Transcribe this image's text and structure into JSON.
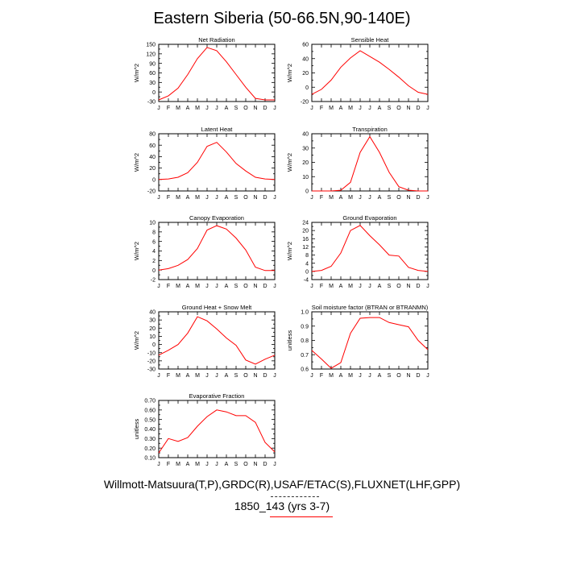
{
  "title": "Eastern Siberia (50-66.5N,90-140E)",
  "caption": "Willmott-Matsuura(T,P),GRDC(R),USAF/ETAC(S),FLUXNET(LHF,GPP)",
  "subcaption": "1850_143 (yrs 3-7)",
  "colors": {
    "model": "#ff0000",
    "legend_dash": "#333333"
  },
  "chart_data": [
    {
      "type": "line",
      "title": "Net Radiation",
      "ylabel": "W/m^2",
      "categories": [
        "J",
        "F",
        "M",
        "A",
        "M",
        "J",
        "J",
        "A",
        "S",
        "O",
        "N",
        "D",
        "J"
      ],
      "ylim": [
        -30,
        150
      ],
      "yticks": [
        -30,
        -15,
        0,
        15,
        30,
        45,
        60,
        75,
        90,
        105,
        120,
        135,
        150
      ],
      "ytick_labels": [
        "-30",
        "",
        "0",
        "",
        "30",
        "",
        "60",
        "",
        "90",
        "",
        "120",
        "",
        "150"
      ],
      "series": [
        {
          "values": [
            -25,
            -12,
            12,
            55,
            105,
            140,
            130,
            95,
            55,
            15,
            -20,
            -25,
            -25
          ]
        }
      ]
    },
    {
      "type": "line",
      "title": "Sensible Heat",
      "ylabel": "W/m^2",
      "categories": [
        "J",
        "F",
        "M",
        "A",
        "M",
        "J",
        "J",
        "A",
        "S",
        "O",
        "N",
        "D",
        "J"
      ],
      "ylim": [
        -20,
        60
      ],
      "yticks": [
        -20,
        -10,
        0,
        10,
        20,
        30,
        40,
        50,
        60
      ],
      "ytick_labels": [
        "-20",
        "",
        "0",
        "",
        "20",
        "",
        "40",
        "",
        "60"
      ],
      "series": [
        {
          "values": [
            -10,
            -3,
            10,
            28,
            41,
            51,
            43,
            35,
            25,
            14,
            2,
            -7,
            -10
          ]
        }
      ]
    },
    {
      "type": "line",
      "title": "Latent Heat",
      "ylabel": "W/m^2",
      "categories": [
        "J",
        "F",
        "M",
        "A",
        "M",
        "J",
        "J",
        "A",
        "S",
        "O",
        "N",
        "D",
        "J"
      ],
      "ylim": [
        -20,
        80
      ],
      "yticks": [
        -20,
        -10,
        0,
        10,
        20,
        30,
        40,
        50,
        60,
        70,
        80
      ],
      "ytick_labels": [
        "-20",
        "",
        "0",
        "",
        "20",
        "",
        "40",
        "",
        "60",
        "",
        "80"
      ],
      "series": [
        {
          "values": [
            0,
            1,
            4,
            12,
            30,
            58,
            65,
            48,
            28,
            15,
            4,
            1,
            0
          ]
        }
      ]
    },
    {
      "type": "line",
      "title": "Transpiration",
      "ylabel": "W/m^2",
      "categories": [
        "J",
        "F",
        "M",
        "A",
        "M",
        "J",
        "J",
        "A",
        "S",
        "O",
        "N",
        "D",
        "J"
      ],
      "ylim": [
        0,
        40
      ],
      "yticks": [
        0,
        5,
        10,
        15,
        20,
        25,
        30,
        35,
        40
      ],
      "ytick_labels": [
        "0",
        "",
        "10",
        "",
        "20",
        "",
        "30",
        "",
        "40"
      ],
      "series": [
        {
          "values": [
            0,
            0,
            0,
            0.5,
            6,
            27,
            38,
            27,
            13,
            3,
            0.5,
            0,
            0
          ]
        }
      ]
    },
    {
      "type": "line",
      "title": "Canopy Evaporation",
      "ylabel": "W/m^2",
      "categories": [
        "J",
        "F",
        "M",
        "A",
        "M",
        "J",
        "J",
        "A",
        "S",
        "O",
        "N",
        "D",
        "J"
      ],
      "ylim": [
        -2,
        10
      ],
      "yticks": [
        -2,
        -1,
        0,
        1,
        2,
        3,
        4,
        5,
        6,
        7,
        8,
        9,
        10
      ],
      "ytick_labels": [
        "-2",
        "",
        "0",
        "",
        "2",
        "",
        "4",
        "",
        "6",
        "",
        "8",
        "",
        "10"
      ],
      "series": [
        {
          "values": [
            0,
            0.3,
            1,
            2.2,
            4.5,
            8.4,
            9.3,
            8.6,
            6.7,
            4.2,
            0.6,
            -0.1,
            -0.1
          ]
        }
      ]
    },
    {
      "type": "line",
      "title": "Ground Evaporation",
      "ylabel": "W/m^2",
      "categories": [
        "J",
        "F",
        "M",
        "A",
        "M",
        "J",
        "J",
        "A",
        "S",
        "O",
        "N",
        "D",
        "J"
      ],
      "ylim": [
        -4,
        24
      ],
      "yticks": [
        -4,
        -2,
        0,
        2,
        4,
        6,
        8,
        10,
        12,
        14,
        16,
        18,
        20,
        22,
        24
      ],
      "ytick_labels": [
        "-4",
        "",
        "0",
        "",
        "4",
        "",
        "8",
        "",
        "12",
        "",
        "16",
        "",
        "20",
        "",
        "24"
      ],
      "series": [
        {
          "values": [
            0,
            0.5,
            2.5,
            9,
            20,
            22.5,
            17.5,
            13,
            8,
            7.5,
            2,
            0.5,
            0
          ]
        }
      ]
    },
    {
      "type": "line",
      "title": "Ground Heat + Snow Melt",
      "ylabel": "W/m^2",
      "categories": [
        "J",
        "F",
        "M",
        "A",
        "M",
        "J",
        "J",
        "A",
        "S",
        "O",
        "N",
        "D",
        "J"
      ],
      "ylim": [
        -30,
        40
      ],
      "yticks": [
        -30,
        -25,
        -20,
        -15,
        -10,
        -5,
        0,
        5,
        10,
        15,
        20,
        25,
        30,
        35,
        40
      ],
      "ytick_labels": [
        "-30",
        "",
        "-20",
        "",
        "-10",
        "",
        "0",
        "",
        "10",
        "",
        "20",
        "",
        "30",
        "",
        "40"
      ],
      "series": [
        {
          "values": [
            -13,
            -7,
            0,
            14,
            34,
            29,
            19,
            8,
            -1,
            -19,
            -24,
            -18,
            -13
          ]
        }
      ]
    },
    {
      "type": "line",
      "title": "Soil moisture factor (BTRAN or BTRANMN)",
      "ylabel": "unitless",
      "categories": [
        "J",
        "F",
        "M",
        "A",
        "M",
        "J",
        "J",
        "A",
        "S",
        "O",
        "N",
        "D",
        "J"
      ],
      "ylim": [
        0.6,
        1.0
      ],
      "yticks": [
        0.6,
        0.65,
        0.7,
        0.75,
        0.8,
        0.85,
        0.9,
        0.95,
        1.0
      ],
      "ytick_labels": [
        "0.6",
        "",
        "0.7",
        "",
        "0.8",
        "",
        "0.9",
        "",
        "1.0"
      ],
      "series": [
        {
          "values": [
            0.73,
            0.67,
            0.605,
            0.645,
            0.85,
            0.955,
            0.96,
            0.96,
            0.925,
            0.91,
            0.895,
            0.8,
            0.735
          ]
        }
      ]
    },
    {
      "type": "line",
      "title": "Evaporative Fraction",
      "ylabel": "unitless",
      "categories": [
        "J",
        "F",
        "M",
        "A",
        "M",
        "J",
        "J",
        "A",
        "S",
        "O",
        "N",
        "D",
        "J"
      ],
      "ylim": [
        0.1,
        0.7
      ],
      "yticks": [
        0.1,
        0.15,
        0.2,
        0.25,
        0.3,
        0.35,
        0.4,
        0.45,
        0.5,
        0.55,
        0.6,
        0.65,
        0.7
      ],
      "ytick_labels": [
        "0.10",
        "",
        "0.20",
        "",
        "0.30",
        "",
        "0.40",
        "",
        "0.50",
        "",
        "0.60",
        "",
        "0.70"
      ],
      "series": [
        {
          "values": [
            0.15,
            0.3,
            0.27,
            0.31,
            0.43,
            0.53,
            0.6,
            0.58,
            0.54,
            0.54,
            0.47,
            0.26,
            0.16
          ]
        }
      ]
    }
  ]
}
